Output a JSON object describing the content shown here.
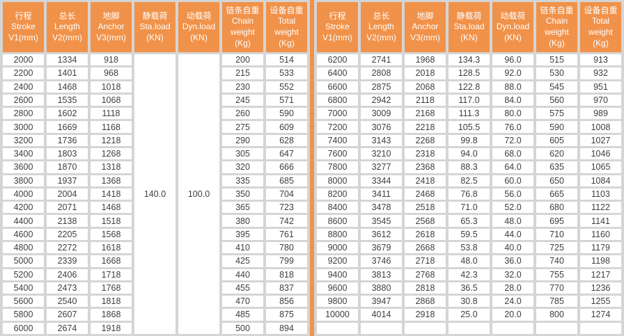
{
  "colors": {
    "header_bg": "#F0924A",
    "divider": "#F0924A",
    "page_bg": "#D5D5D5",
    "cell_bg": "#FFFFFF",
    "header_text": "#FFFFFF",
    "cell_text": "#3E3E3E"
  },
  "headers": [
    {
      "lines": [
        "行程",
        "Stroke",
        "V1(mm)"
      ]
    },
    {
      "lines": [
        "总长",
        "Length",
        "V2(mm)"
      ]
    },
    {
      "lines": [
        "地脚",
        "Anchor",
        "V3(mm)"
      ]
    },
    {
      "lines": [
        "静载荷",
        "Sta.load",
        "(KN)"
      ]
    },
    {
      "lines": [
        "动载荷",
        "Dyn.load",
        "(KN)"
      ]
    },
    {
      "lines": [
        "链条自重",
        "Chain",
        "weight",
        "(Kg)"
      ]
    },
    {
      "lines": [
        "设备自重",
        "Total",
        "weight",
        "(Kg)"
      ]
    }
  ],
  "tables": [
    {
      "name": "left",
      "merged_columns": [
        {
          "index": 3,
          "value": "140.0"
        },
        {
          "index": 4,
          "value": "100.0"
        }
      ],
      "rows": [
        [
          "2000",
          "1334",
          "918",
          "200",
          "514"
        ],
        [
          "2200",
          "1401",
          "968",
          "215",
          "533"
        ],
        [
          "2400",
          "1468",
          "1018",
          "230",
          "552"
        ],
        [
          "2600",
          "1535",
          "1068",
          "245",
          "571"
        ],
        [
          "2800",
          "1602",
          "1118",
          "260",
          "590"
        ],
        [
          "3000",
          "1669",
          "1168",
          "275",
          "609"
        ],
        [
          "3200",
          "1736",
          "1218",
          "290",
          "628"
        ],
        [
          "3400",
          "1803",
          "1268",
          "305",
          "647"
        ],
        [
          "3600",
          "1870",
          "1318",
          "320",
          "666"
        ],
        [
          "3800",
          "1937",
          "1368",
          "335",
          "685"
        ],
        [
          "4000",
          "2004",
          "1418",
          "350",
          "704"
        ],
        [
          "4200",
          "2071",
          "1468",
          "365",
          "723"
        ],
        [
          "4400",
          "2138",
          "1518",
          "380",
          "742"
        ],
        [
          "4600",
          "2205",
          "1568",
          "395",
          "761"
        ],
        [
          "4800",
          "2272",
          "1618",
          "410",
          "780"
        ],
        [
          "5000",
          "2339",
          "1668",
          "425",
          "799"
        ],
        [
          "5200",
          "2406",
          "1718",
          "440",
          "818"
        ],
        [
          "5400",
          "2473",
          "1768",
          "455",
          "837"
        ],
        [
          "5600",
          "2540",
          "1818",
          "470",
          "856"
        ],
        [
          "5800",
          "2607",
          "1868",
          "485",
          "875"
        ],
        [
          "6000",
          "2674",
          "1918",
          "500",
          "894"
        ]
      ]
    },
    {
      "name": "right",
      "merged_columns": [],
      "rows": [
        [
          "6200",
          "2741",
          "1968",
          "134.3",
          "96.0",
          "515",
          "913"
        ],
        [
          "6400",
          "2808",
          "2018",
          "128.5",
          "92.0",
          "530",
          "932"
        ],
        [
          "6600",
          "2875",
          "2068",
          "122.8",
          "88.0",
          "545",
          "951"
        ],
        [
          "6800",
          "2942",
          "2118",
          "117.0",
          "84.0",
          "560",
          "970"
        ],
        [
          "7000",
          "3009",
          "2168",
          "111.3",
          "80.0",
          "575",
          "989"
        ],
        [
          "7200",
          "3076",
          "2218",
          "105.5",
          "76.0",
          "590",
          "1008"
        ],
        [
          "7400",
          "3143",
          "2268",
          "99.8",
          "72.0",
          "605",
          "1027"
        ],
        [
          "7600",
          "3210",
          "2318",
          "94.0",
          "68.0",
          "620",
          "1046"
        ],
        [
          "7800",
          "3277",
          "2368",
          "88.3",
          "64.0",
          "635",
          "1065"
        ],
        [
          "8000",
          "3344",
          "2418",
          "82.5",
          "60.0",
          "650",
          "1084"
        ],
        [
          "8200",
          "3411",
          "2468",
          "76.8",
          "56.0",
          "665",
          "1103"
        ],
        [
          "8400",
          "3478",
          "2518",
          "71.0",
          "52.0",
          "680",
          "1122"
        ],
        [
          "8600",
          "3545",
          "2568",
          "65.3",
          "48.0",
          "695",
          "1141"
        ],
        [
          "8800",
          "3612",
          "2618",
          "59.5",
          "44.0",
          "710",
          "1160"
        ],
        [
          "9000",
          "3679",
          "2668",
          "53.8",
          "40.0",
          "725",
          "1179"
        ],
        [
          "9200",
          "3746",
          "2718",
          "48.0",
          "36.0",
          "740",
          "1198"
        ],
        [
          "9400",
          "3813",
          "2768",
          "42.3",
          "32.0",
          "755",
          "1217"
        ],
        [
          "9600",
          "3880",
          "2818",
          "36.5",
          "28.0",
          "770",
          "1236"
        ],
        [
          "9800",
          "3947",
          "2868",
          "30.8",
          "24.0",
          "785",
          "1255"
        ],
        [
          "10000",
          "4014",
          "2918",
          "25.0",
          "20.0",
          "800",
          "1274"
        ],
        [
          "",
          "",
          "",
          "",
          "",
          "",
          ""
        ]
      ]
    }
  ]
}
